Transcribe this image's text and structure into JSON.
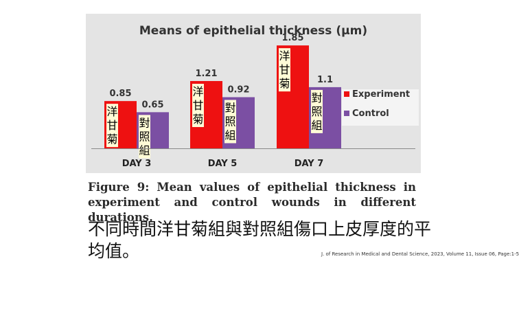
{
  "chart_data": {
    "type": "bar",
    "title": "Means of epithelial thickness (μm)",
    "categories": [
      "DAY 3",
      "DAY 5",
      "DAY 7"
    ],
    "series": [
      {
        "name": "Experiment",
        "values": [
          0.85,
          1.21,
          1.85
        ],
        "value_labels": [
          "0.85",
          "1.21",
          "1.85"
        ],
        "bar_text": "洋甘菊",
        "color": "#ee1111"
      },
      {
        "name": "Control",
        "values": [
          0.65,
          0.92,
          1.1
        ],
        "value_labels": [
          "0.65",
          "0.92",
          "1.1"
        ],
        "bar_text": "對照組",
        "color": "#7b4fa3"
      }
    ],
    "ylim": [
      0,
      2.0
    ],
    "grid": false,
    "legend_position": "right"
  },
  "figure_caption": "Figure 9: Mean values of epithelial thickness in experiment and control wounds in different durations.",
  "chinese_caption": "不同時間洋甘菊組與對照組傷口上皮厚度的平均值。",
  "source_citation": "J. of Research in Medical and Dental Science, 2023, Volume 11, Issue 06, Page:1-5"
}
